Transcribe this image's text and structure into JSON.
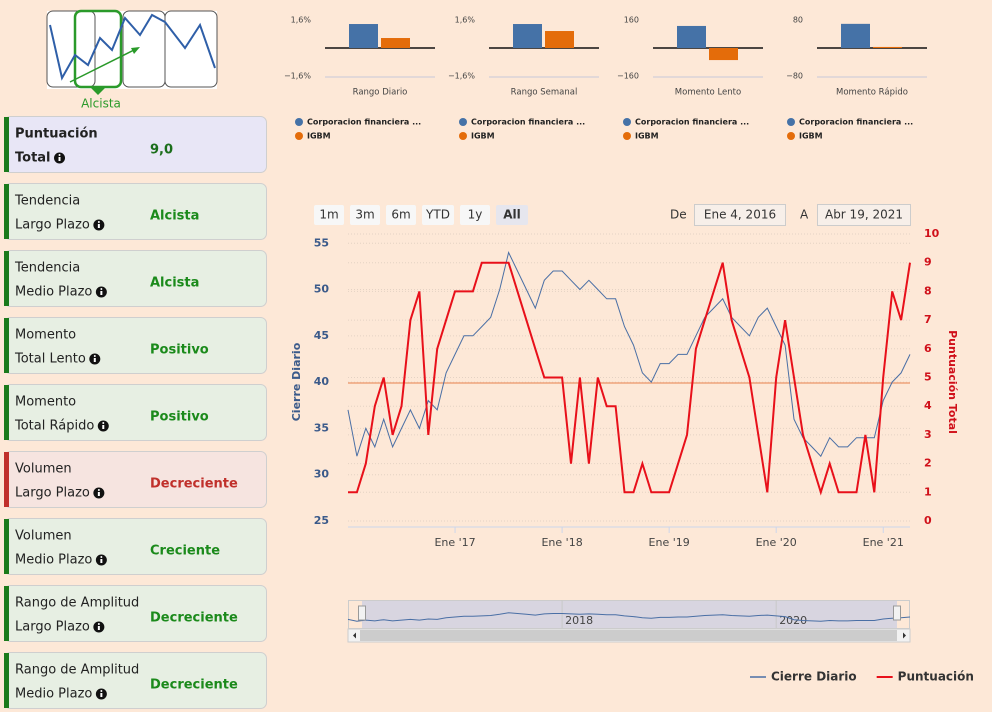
{
  "logo": {
    "label": "Alcista"
  },
  "sidebar": [
    {
      "line1": "Puntuación",
      "line2": "Total",
      "value": "9,0",
      "tone": "neutral"
    },
    {
      "line1": "Tendencia",
      "line2": "Largo Plazo",
      "value": "Alcista",
      "tone": "good"
    },
    {
      "line1": "Tendencia",
      "line2": "Medio Plazo",
      "value": "Alcista",
      "tone": "good"
    },
    {
      "line1": "Momento",
      "line2": "Total Lento",
      "value": "Positivo",
      "tone": "good"
    },
    {
      "line1": "Momento",
      "line2": "Total Rápido",
      "value": "Positivo",
      "tone": "good"
    },
    {
      "line1": "Volumen",
      "line2": "Largo Plazo",
      "value": "Decreciente",
      "tone": "bad"
    },
    {
      "line1": "Volumen",
      "line2": "Medio Plazo",
      "value": "Creciente",
      "tone": "good"
    },
    {
      "line1": "Rango de Amplitud",
      "line2": "Largo Plazo",
      "value": "Decreciente",
      "tone": "good"
    },
    {
      "line1": "Rango de Amplitud",
      "line2": "Medio Plazo",
      "value": "Decreciente",
      "tone": "good"
    }
  ],
  "range_selector": {
    "buttons": [
      "1m",
      "3m",
      "6m",
      "YTD",
      "1y",
      "All"
    ],
    "selected": 5,
    "from_label": "De",
    "from": "Ene 4, 2016",
    "to_label": "A",
    "to": "Abr 19, 2021"
  },
  "chart_data": [
    {
      "type": "bar",
      "title": "Rango Diario",
      "ylim": [
        -1.6,
        1.6
      ],
      "yticks": [
        {
          "value": 1.6,
          "label": "1,6%"
        },
        {
          "value": -1.6,
          "label": "−1,6%"
        }
      ],
      "series": [
        {
          "name": "Corporacion financiera ...",
          "color": "#4572a7",
          "values": [
            1.37
          ]
        },
        {
          "name": "IGBM",
          "color": "#e46c0a",
          "values": [
            0.57
          ]
        }
      ]
    },
    {
      "type": "bar",
      "title": "Rango Semanal",
      "ylim": [
        -1.6,
        1.6
      ],
      "yticks": [
        {
          "value": 1.6,
          "label": "1,6%"
        },
        {
          "value": -1.6,
          "label": "−1,6%"
        }
      ],
      "series": [
        {
          "name": "Corporacion financiera ...",
          "color": "#4572a7",
          "values": [
            1.37
          ]
        },
        {
          "name": "IGBM",
          "color": "#e46c0a",
          "values": [
            0.97
          ]
        }
      ]
    },
    {
      "type": "bar",
      "title": "Momento Lento",
      "ylim": [
        -160,
        160
      ],
      "yticks": [
        160,
        {
          "value": -160,
          "label": "−160"
        }
      ],
      "series": [
        {
          "name": "Corporacion financiera ...",
          "color": "#4572a7",
          "values": [
            126
          ]
        },
        {
          "name": "IGBM",
          "color": "#e46c0a",
          "values": [
            -69
          ]
        }
      ]
    },
    {
      "type": "bar",
      "title": "Momento Rápido",
      "ylim": [
        -80,
        80
      ],
      "yticks": [
        80,
        {
          "value": -80,
          "label": "−80"
        }
      ],
      "series": [
        {
          "name": "Corporacion financiera ...",
          "color": "#4572a7",
          "values": [
            69
          ]
        },
        {
          "name": "IGBM",
          "color": "#e46c0a",
          "values": [
            3
          ]
        }
      ]
    },
    {
      "type": "line",
      "x": [
        "2016-01",
        "2016-02",
        "2016-03",
        "2016-04",
        "2016-05",
        "2016-06",
        "2016-07",
        "2016-08",
        "2016-09",
        "2016-10",
        "2016-11",
        "2016-12",
        "2017-01",
        "2017-02",
        "2017-03",
        "2017-04",
        "2017-05",
        "2017-06",
        "2017-07",
        "2017-08",
        "2017-09",
        "2017-10",
        "2017-11",
        "2017-12",
        "2018-01",
        "2018-02",
        "2018-03",
        "2018-04",
        "2018-05",
        "2018-06",
        "2018-07",
        "2018-08",
        "2018-09",
        "2018-10",
        "2018-11",
        "2018-12",
        "2019-01",
        "2019-02",
        "2019-03",
        "2019-04",
        "2019-05",
        "2019-06",
        "2019-07",
        "2019-08",
        "2019-09",
        "2019-10",
        "2019-11",
        "2019-12",
        "2020-01",
        "2020-02",
        "2020-03",
        "2020-04",
        "2020-05",
        "2020-06",
        "2020-07",
        "2020-08",
        "2020-09",
        "2020-10",
        "2020-11",
        "2020-12",
        "2021-01",
        "2021-02",
        "2021-03",
        "2021-04"
      ],
      "xlim": [
        "2016-01",
        "2021-04"
      ],
      "xticks": [
        {
          "value": "2017-01",
          "label": "Ene '17"
        },
        {
          "value": "2018-01",
          "label": "Ene '18"
        },
        {
          "value": "2019-01",
          "label": "Ene '19"
        },
        {
          "value": "2020-01",
          "label": "Ene '20"
        },
        {
          "value": "2021-01",
          "label": "Ene '21"
        }
      ],
      "ylim": [
        25,
        56
      ],
      "yticks": [
        25,
        30,
        35,
        40,
        45,
        50,
        55
      ],
      "y2lim": [
        0,
        10
      ],
      "y2ticks": [
        0,
        1,
        2,
        3,
        4,
        5,
        6,
        7,
        8,
        9,
        10
      ],
      "y_label": "Cierre Diario",
      "y2_label": "Puntuación Total",
      "grid": true,
      "plot_line": {
        "value": 39.9,
        "color": "#eea27a"
      },
      "legend": "bottom-right",
      "navigator": {
        "xticks": [
          {
            "value": "2018-01",
            "label": "2018"
          },
          {
            "value": "2020-01",
            "label": "2020"
          }
        ]
      },
      "series": [
        {
          "name": "Cierre Diario",
          "color": "#4a6fa5",
          "values": [
            37,
            32,
            35,
            33,
            36,
            33,
            35,
            37,
            35,
            38,
            37,
            41,
            43,
            45,
            45,
            46,
            47,
            50,
            54,
            52,
            50,
            48,
            51,
            52,
            52,
            51,
            50,
            51,
            50,
            49,
            49,
            46,
            44,
            41,
            40,
            42,
            42,
            43,
            43,
            45,
            47,
            48,
            49,
            47,
            46,
            45,
            47,
            48,
            46,
            44,
            36,
            34,
            33,
            32,
            34,
            33,
            33,
            34,
            34,
            34,
            38,
            40,
            41,
            43
          ]
        },
        {
          "name": "Puntuación",
          "color": "#e8101a",
          "axis": "y2",
          "values": [
            1,
            1,
            2,
            4,
            5,
            3,
            4,
            7,
            8,
            3,
            6,
            7,
            8,
            8,
            8,
            9,
            9,
            9,
            9,
            8,
            7,
            6,
            5,
            5,
            5,
            2,
            5,
            2,
            5,
            4,
            4,
            1,
            1,
            2,
            1,
            1,
            1,
            2,
            3,
            6,
            7,
            8,
            9,
            7,
            6,
            5,
            3,
            1,
            5,
            7,
            5,
            3,
            2,
            1,
            2,
            1,
            1,
            1,
            3,
            1,
            5,
            8,
            7,
            9
          ]
        }
      ]
    }
  ]
}
